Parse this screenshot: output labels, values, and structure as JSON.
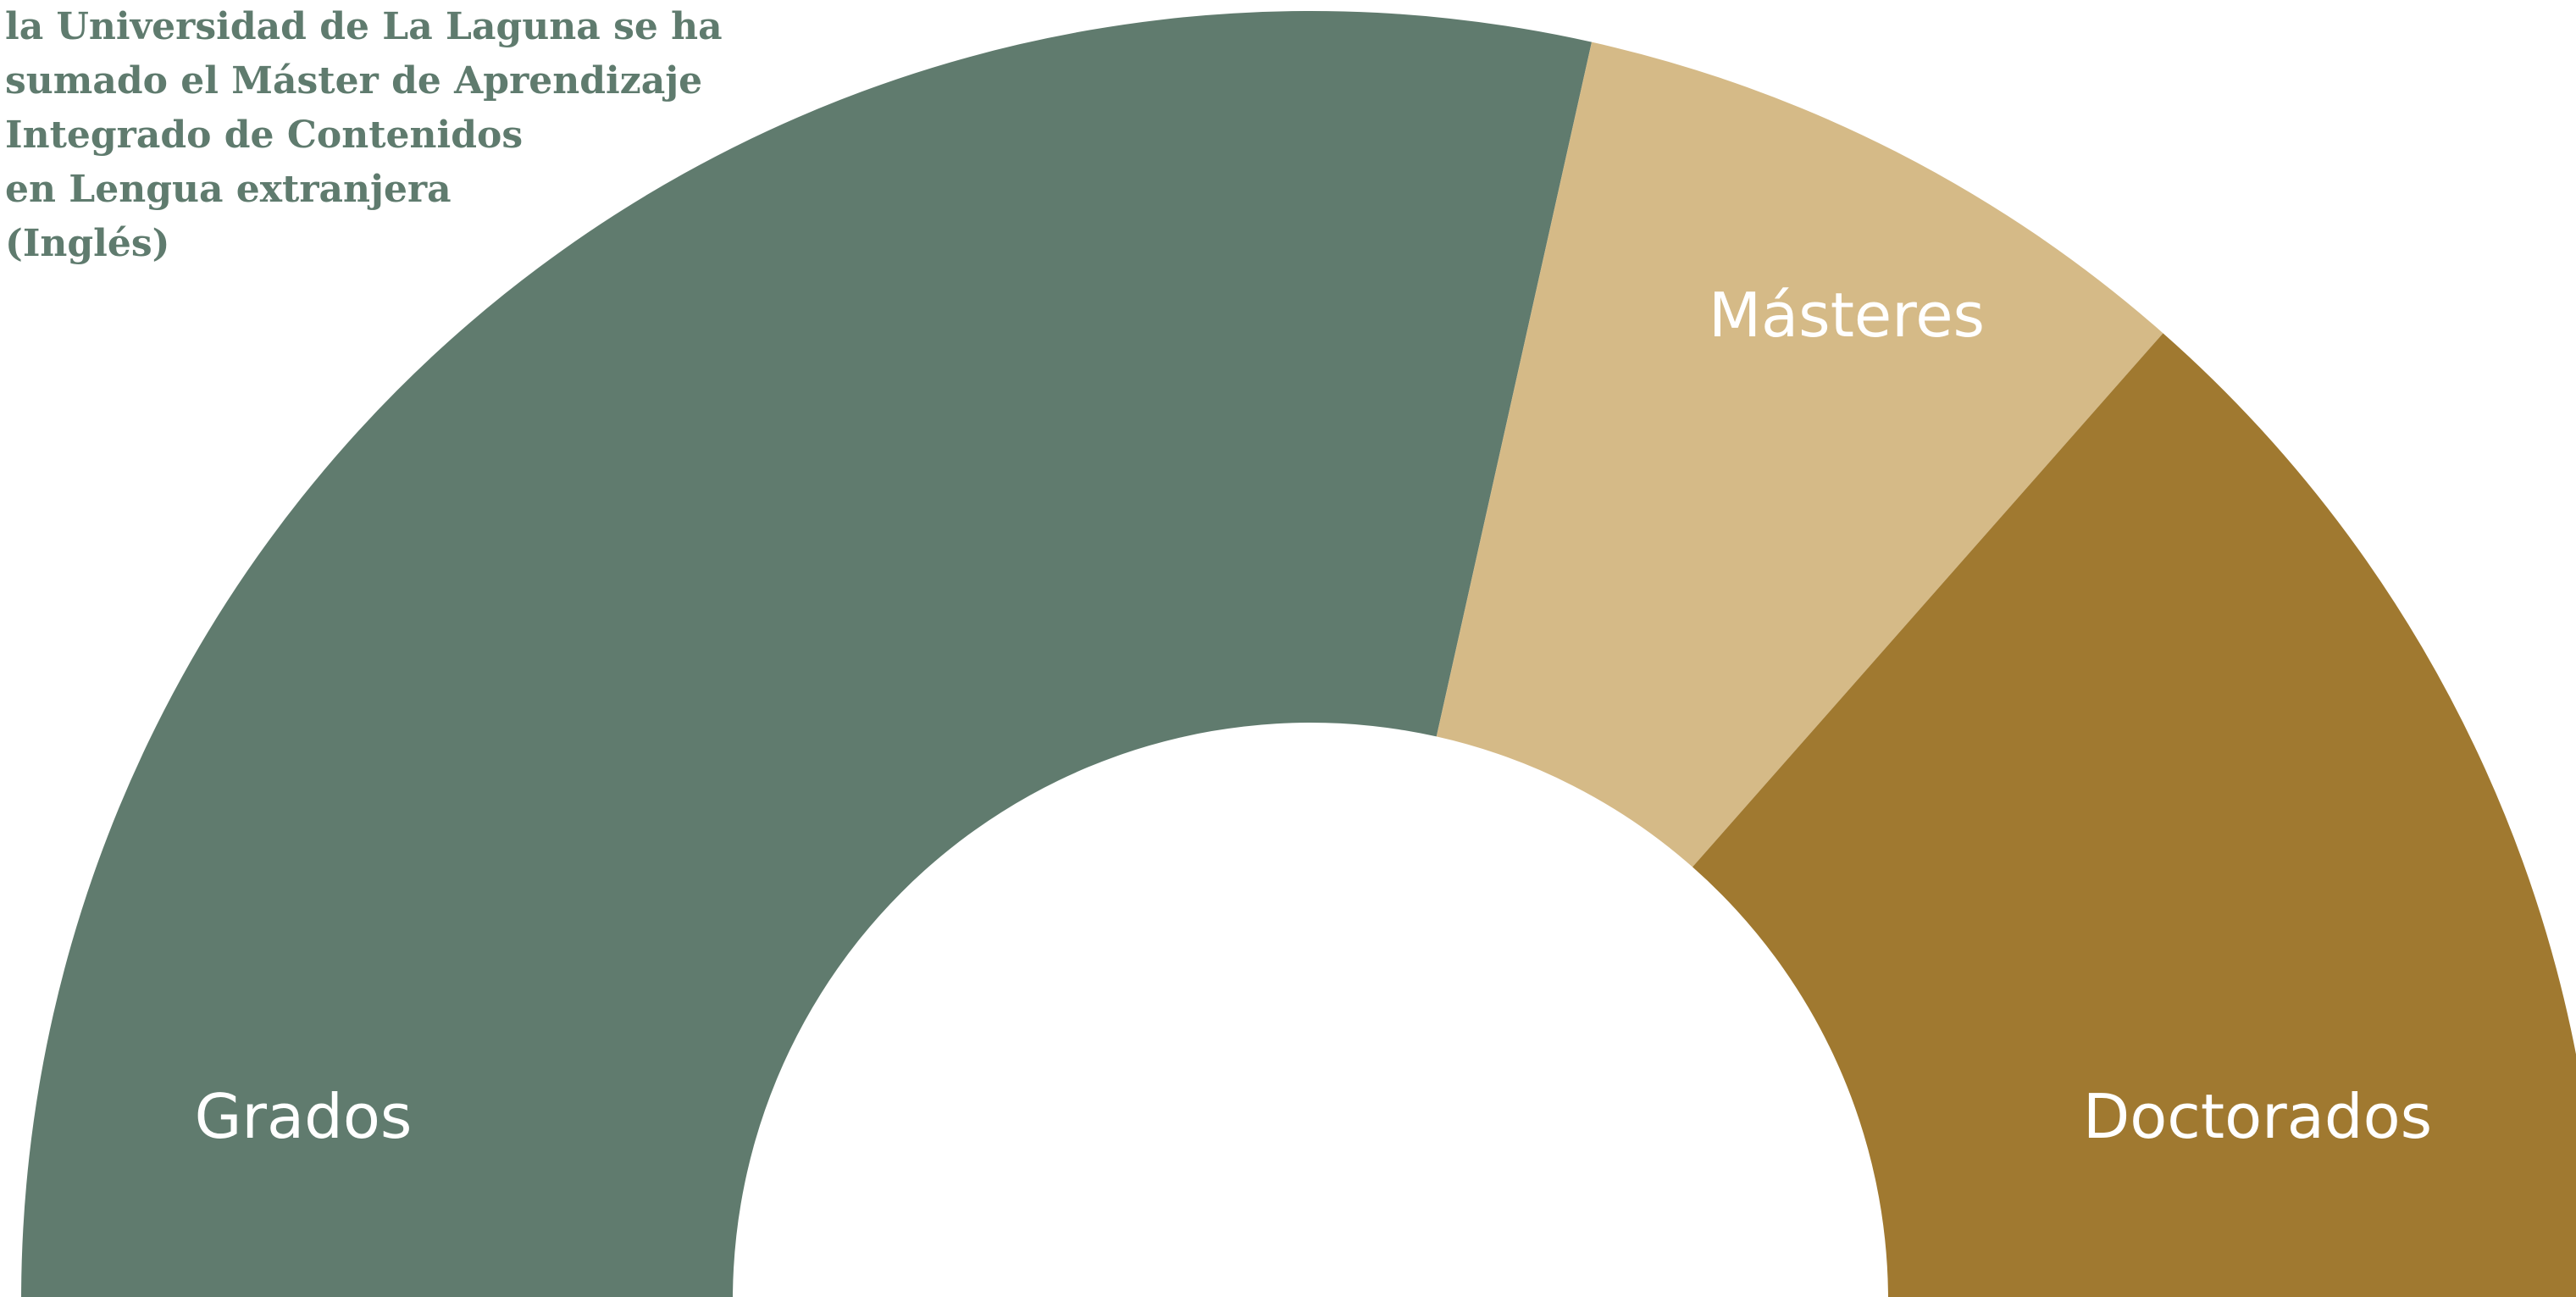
{
  "annotation": {
    "lines": [
      "la Universidad de La Laguna se ha",
      "sumado el Máster de Aprendizaje",
      "Integrado de Contenidos",
      "en Lengua extranjera",
      "(Inglés)"
    ]
  },
  "chart_data": {
    "type": "pie",
    "variant": "half-donut",
    "categories": [
      "Grados",
      "Másteres",
      "Doctorados"
    ],
    "values": [
      57,
      16,
      27
    ],
    "colors": [
      "#607b6e",
      "#d5ba87",
      "#a07930"
    ],
    "label_color": "#ffffff",
    "title": "",
    "legend": "none"
  }
}
